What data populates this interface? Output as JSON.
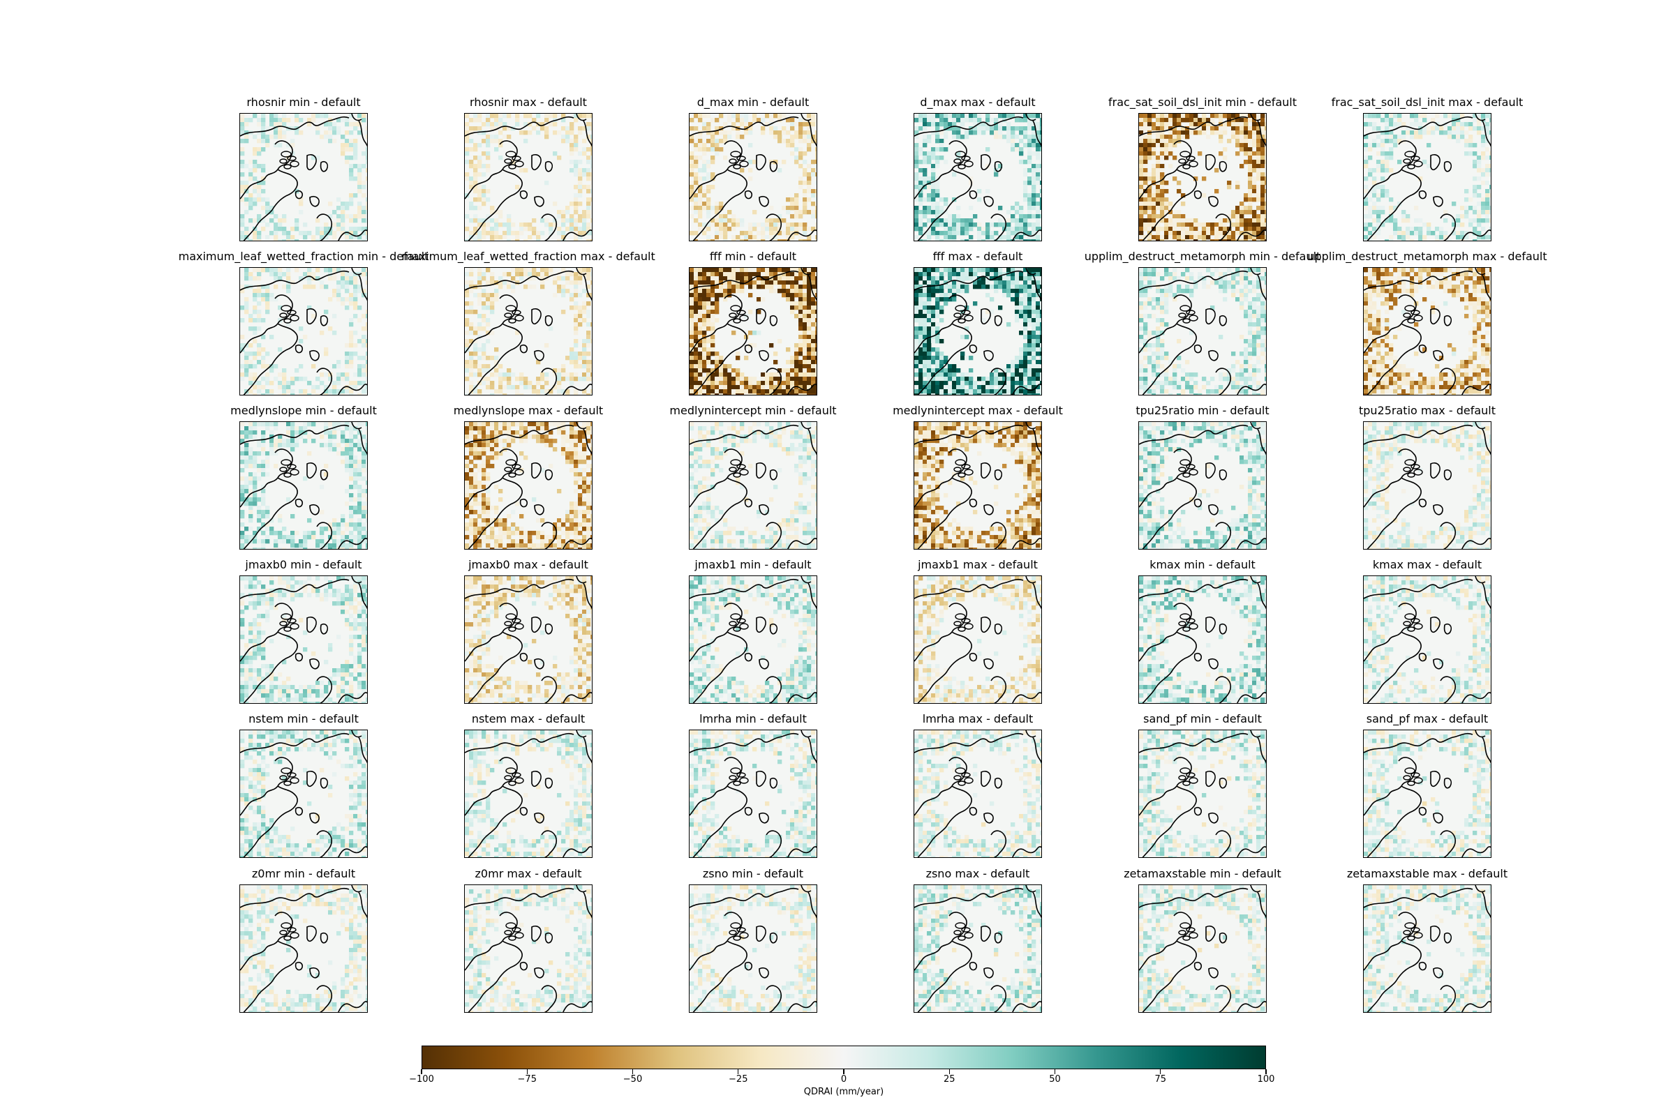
{
  "chart_data": {
    "type": "heatmap",
    "description_map": "polar-stereographic Arctic maps, one per parameter perturbation",
    "panels": [
      "rhosnir min - default",
      "rhosnir max - default",
      "d_max min - default",
      "d_max max - default",
      "frac_sat_soil_dsl_init min - default",
      "frac_sat_soil_dsl_init max - default",
      "maximum_leaf_wetted_fraction min - default",
      "maximum_leaf_wetted_fraction max - default",
      "fff min - default",
      "fff max - default",
      "upplim_destruct_metamorph min - default",
      "upplim_destruct_metamorph max - default",
      "medlynslope min - default",
      "medlynslope max - default",
      "medlynintercept min - default",
      "medlynintercept max - default",
      "tpu25ratio min - default",
      "tpu25ratio max - default",
      "jmaxb0 min - default",
      "jmaxb0 max - default",
      "jmaxb1 min - default",
      "jmaxb1 max - default",
      "kmax min - default",
      "kmax max - default",
      "nstem min - default",
      "nstem max - default",
      "lmrha min - default",
      "lmrha max - default",
      "sand_pf min - default",
      "sand_pf max - default",
      "z0mr min - default",
      "z0mr max - default",
      "zsno min - default",
      "zsno max - default",
      "zetamaxstable min - default",
      "zetamaxstable max - default"
    ],
    "panel_bias": [
      0.05,
      -0.05,
      -0.15,
      0.25,
      -0.45,
      0.1,
      0.05,
      -0.1,
      -0.65,
      0.55,
      0.12,
      -0.3,
      0.15,
      -0.3,
      0.05,
      -0.35,
      0.15,
      0.02,
      0.12,
      -0.15,
      0.12,
      -0.1,
      0.15,
      0.05,
      0.1,
      0.05,
      0.08,
      0.04,
      0.08,
      0.05,
      0.03,
      0.04,
      0.0,
      0.1,
      0.06,
      0.05
    ],
    "colorbar": {
      "label": "QDRAI (mm/year)",
      "range": [
        -100,
        100
      ],
      "ticks": [
        -100,
        -75,
        -50,
        -25,
        0,
        25,
        50,
        75,
        100
      ],
      "tick_labels": [
        "−100",
        "−75",
        "−50",
        "−25",
        "0",
        "25",
        "50",
        "75",
        "100"
      ],
      "colormap": "BrBG",
      "colors": [
        "#543005",
        "#8c510a",
        "#bf812d",
        "#dfc27d",
        "#f6e8c3",
        "#f5f5f5",
        "#c7eae5",
        "#80cdc1",
        "#35978f",
        "#01665e",
        "#003c30"
      ]
    }
  }
}
